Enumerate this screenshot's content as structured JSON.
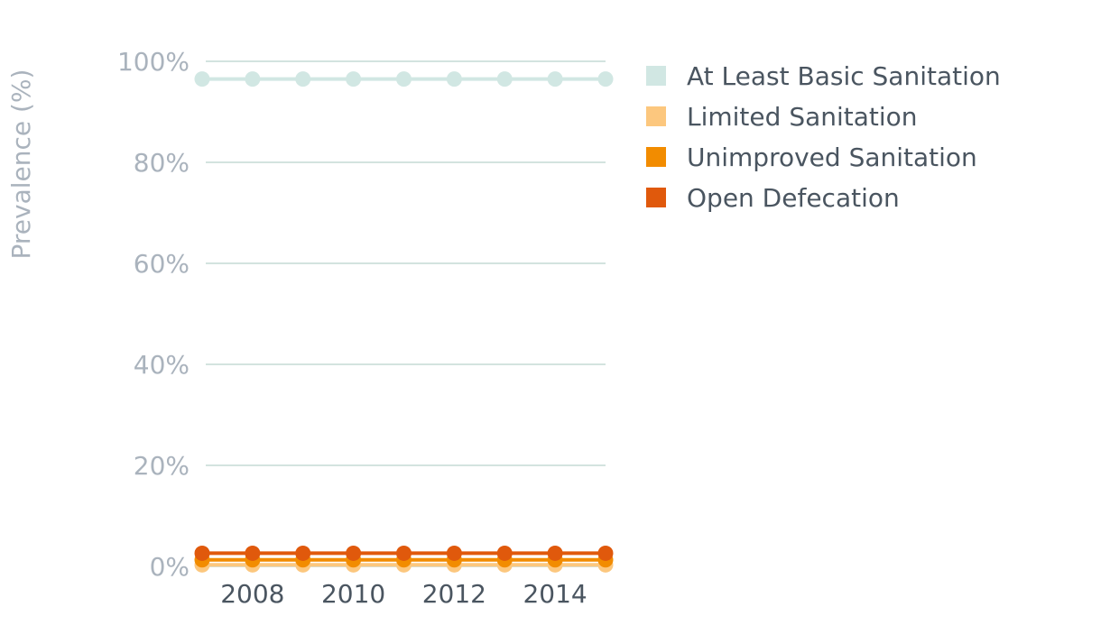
{
  "chart_data": {
    "type": "line",
    "ylabel": "Prevalence (%)",
    "xlabel": "",
    "ylim": [
      0,
      100
    ],
    "yticks": [
      0,
      20,
      40,
      60,
      80,
      100
    ],
    "ytick_labels": [
      "0%",
      "20%",
      "40%",
      "60%",
      "80%",
      "100%"
    ],
    "xlim": [
      2007,
      2015
    ],
    "xticks": [
      2008,
      2010,
      2012,
      2014
    ],
    "xtick_labels": [
      "2008",
      "2010",
      "2012",
      "2014"
    ],
    "x": [
      2007,
      2008,
      2009,
      2010,
      2011,
      2012,
      2013,
      2014,
      2015
    ],
    "grid": true,
    "legend_position": "right",
    "series": [
      {
        "name": "At Least Basic Sanitation",
        "color": "#d1e7e3",
        "values": [
          96.5,
          96.5,
          96.5,
          96.5,
          96.5,
          96.5,
          96.5,
          96.5,
          96.5
        ]
      },
      {
        "name": "Limited Sanitation",
        "color": "#fcc77e",
        "values": [
          0.3,
          0.3,
          0.3,
          0.3,
          0.3,
          0.3,
          0.3,
          0.3,
          0.3
        ]
      },
      {
        "name": "Unimproved Sanitation",
        "color": "#f28c00",
        "values": [
          1.3,
          1.3,
          1.3,
          1.3,
          1.3,
          1.3,
          1.3,
          1.3,
          1.3
        ]
      },
      {
        "name": "Open Defecation",
        "color": "#e0590c",
        "values": [
          2.6,
          2.6,
          2.6,
          2.6,
          2.6,
          2.6,
          2.6,
          2.6,
          2.6
        ]
      }
    ]
  }
}
